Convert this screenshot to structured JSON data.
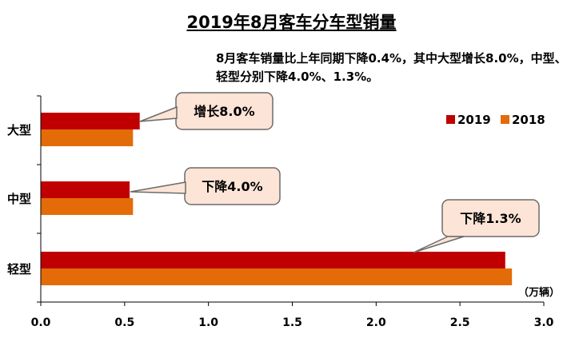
{
  "chart_data": {
    "type": "bar",
    "orientation": "horizontal",
    "title": "2019年8月客车分车型销量",
    "subtitle": "8月客车销量比上年同期下降0.4%，其中大型增长8.0%，中型、轻型分别下降4.0%、1.3%。",
    "categories": [
      "大型",
      "中型",
      "轻型"
    ],
    "series": [
      {
        "name": "2019",
        "color": "#C00000",
        "values": [
          0.59,
          0.53,
          2.77
        ]
      },
      {
        "name": "2018",
        "color": "#E36C09",
        "values": [
          0.55,
          0.55,
          2.81
        ]
      }
    ],
    "xlim": [
      0,
      3.0
    ],
    "xticks": [
      "0.0",
      "0.5",
      "1.0",
      "1.5",
      "2.0",
      "2.5",
      "3.0"
    ],
    "unit_label": "（万辆）",
    "legend_position": "right",
    "grid": false,
    "annotations": [
      {
        "category": "大型",
        "text": "增长8.0%"
      },
      {
        "category": "中型",
        "text": "下降4.0%"
      },
      {
        "category": "轻型",
        "text": "下降1.3%"
      }
    ],
    "callout_fill": "#FCE4D6"
  }
}
